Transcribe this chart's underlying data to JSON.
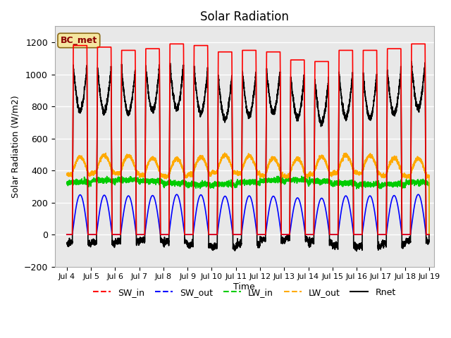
{
  "title": "Solar Radiation",
  "ylabel": "Solar Radiation (W/m2)",
  "xlabel": "Time",
  "xlim_days": [
    3.5,
    19.2
  ],
  "ylim": [
    -200,
    1300
  ],
  "yticks": [
    -200,
    0,
    200,
    400,
    600,
    800,
    1000,
    1200
  ],
  "xtick_labels": [
    "Jul 4",
    "Jul 5",
    "Jul 6",
    "Jul 7",
    "Jul 8",
    "Jul 9",
    "Jul 10",
    "Jul 11",
    "Jul 12",
    "Jul 13",
    "Jul 14",
    "Jul 15",
    "Jul 16",
    "Jul 17",
    "Jul 18",
    "Jul 19"
  ],
  "xtick_positions": [
    4,
    5,
    6,
    7,
    8,
    9,
    10,
    11,
    12,
    13,
    14,
    15,
    16,
    17,
    18,
    19
  ],
  "station_label": "BC_met",
  "SW_in_color": "#ff0000",
  "SW_out_color": "#0000ff",
  "LW_in_color": "#00cc00",
  "LW_out_color": "#ffaa00",
  "Rnet_color": "#000000",
  "legend_entries": [
    "SW_in",
    "SW_out",
    "LW_in",
    "LW_out",
    "Rnet"
  ],
  "legend_colors": [
    "#ff0000",
    "#0000ff",
    "#00cc00",
    "#ffaa00",
    "#000000"
  ],
  "legend_linestyles": [
    "--",
    "--",
    "--",
    "--",
    "-"
  ],
  "bg_color": "#ffffff",
  "plot_bg_color": "#e8e8e8",
  "grid_color": "#ffffff",
  "sw_in_peaks": [
    1180,
    1170,
    1150,
    1160,
    1190,
    1180,
    1140,
    1150,
    1140,
    1090,
    1080,
    1150,
    1150,
    1160,
    1190
  ],
  "lw": 1.2
}
